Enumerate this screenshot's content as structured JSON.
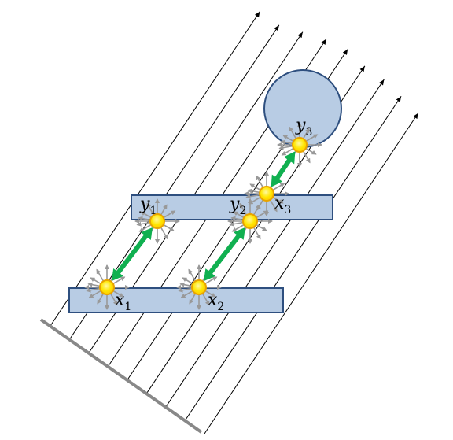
{
  "labels": {
    "x1": {
      "base": "x",
      "sub": "1"
    },
    "x2": {
      "base": "x",
      "sub": "2"
    },
    "x3": {
      "base": "x",
      "sub": "3"
    },
    "y1": {
      "base": "y",
      "sub": "1"
    },
    "y2": {
      "base": "y",
      "sub": "2"
    },
    "y3": {
      "base": "y",
      "sub": "3"
    }
  },
  "colors": {
    "ray": "#000000",
    "plate": "#888888",
    "shape_fill": "#b8cce4",
    "shape_stroke": "#2e4f7f",
    "particle_fill": "#ffe600",
    "particle_stroke": "#e8a400",
    "link": "#10b050",
    "scatter": "#999999"
  }
}
